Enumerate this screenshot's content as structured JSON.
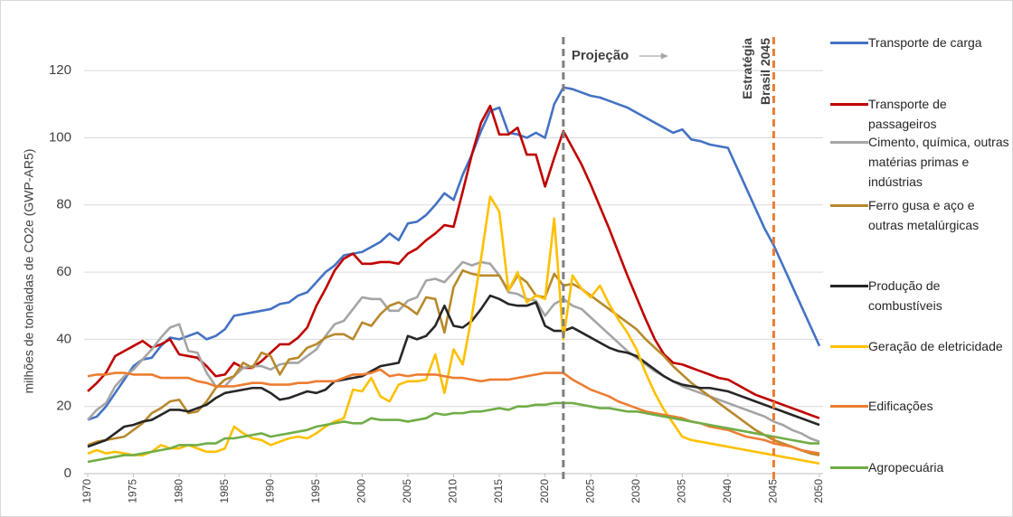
{
  "chart_data": {
    "type": "line",
    "ylabel": "milhões de toneladas de CO2e (GWP-AR5)",
    "projection_label": "Projeção",
    "target_label": [
      "Estratégia",
      "Brasil 2045"
    ],
    "reference_lines": [
      {
        "x": 2022,
        "color": "#7f7f7f"
      },
      {
        "x": 2045,
        "color": "#ed7d31"
      }
    ],
    "xlim": [
      1970,
      2050
    ],
    "xticks": [
      1970,
      1975,
      1980,
      1985,
      1990,
      1995,
      2000,
      2005,
      2010,
      2015,
      2020,
      2025,
      2030,
      2035,
      2040,
      2045,
      2050
    ],
    "ylim": [
      0,
      130
    ],
    "yticks": [
      0,
      20,
      40,
      60,
      80,
      100,
      120
    ],
    "grid": true,
    "legend": "right",
    "x": [
      1970,
      1971,
      1972,
      1973,
      1974,
      1975,
      1976,
      1977,
      1978,
      1979,
      1980,
      1981,
      1982,
      1983,
      1984,
      1985,
      1986,
      1987,
      1988,
      1989,
      1990,
      1991,
      1992,
      1993,
      1994,
      1995,
      1996,
      1997,
      1998,
      1999,
      2000,
      2001,
      2002,
      2003,
      2004,
      2005,
      2006,
      2007,
      2008,
      2009,
      2010,
      2011,
      2012,
      2013,
      2014,
      2015,
      2016,
      2017,
      2018,
      2019,
      2020,
      2021,
      2022,
      2023,
      2024,
      2025,
      2026,
      2027,
      2028,
      2029,
      2030,
      2031,
      2032,
      2033,
      2034,
      2035,
      2036,
      2037,
      2038,
      2039,
      2040,
      2041,
      2042,
      2043,
      2044,
      2045,
      2046,
      2047,
      2048,
      2049,
      2050
    ],
    "series": [
      {
        "name": "Transporte de carga",
        "color": "#4472c4",
        "values": [
          16,
          17,
          20,
          24,
          28,
          32,
          34,
          34.5,
          38,
          40.5,
          40,
          41,
          42,
          40,
          41,
          43,
          47,
          47.5,
          48,
          48.5,
          49,
          50.5,
          51,
          53,
          54,
          57,
          60,
          62,
          65,
          65.5,
          66,
          67.5,
          69,
          71.5,
          69.5,
          74.5,
          75,
          77,
          80,
          83.5,
          81.5,
          89,
          95,
          102,
          108,
          109,
          101.5,
          101,
          100,
          101.5,
          100,
          110,
          115,
          114.5,
          113.5,
          112.5,
          112,
          111,
          110,
          109,
          107.5,
          106,
          104.5,
          103,
          101.5,
          102.5,
          99.5,
          99,
          98,
          97.5,
          97,
          91,
          85,
          79,
          73,
          68,
          62,
          56,
          50,
          44,
          38
        ]
      },
      {
        "name": "Transporte de passageiros",
        "color": "#c00000",
        "values": [
          24.5,
          27,
          30,
          35,
          36.5,
          38,
          39.5,
          37.5,
          38.5,
          40,
          35.5,
          35,
          34.5,
          32,
          29,
          29.5,
          33,
          31.5,
          31.5,
          33.5,
          36,
          38.5,
          38.5,
          40.5,
          43.5,
          50,
          55,
          60.5,
          64,
          65.5,
          62.5,
          62.5,
          63,
          63,
          62.5,
          65.5,
          67,
          69.5,
          71.5,
          74,
          73.5,
          84,
          95,
          104.5,
          109.5,
          101,
          101,
          103,
          95,
          95,
          85.5,
          94,
          102,
          97,
          92,
          86,
          79.5,
          73,
          66,
          59,
          52.5,
          46,
          40,
          35.5,
          33,
          32.5,
          31.5,
          30.5,
          29.5,
          28.5,
          28,
          26.5,
          25,
          23.5,
          22.5,
          21.5,
          20.5,
          19.5,
          18.5,
          17.5,
          16.5
        ]
      },
      {
        "name": "Cimento, química, outras matérias primas e indústrias",
        "color": "#a5a5a5",
        "values": [
          16,
          19,
          21,
          26,
          29,
          31,
          34,
          37,
          40.5,
          43.5,
          44.5,
          36.5,
          36,
          30,
          26,
          26,
          29,
          31.5,
          32,
          32,
          31,
          32.5,
          33,
          33,
          35,
          37,
          41,
          44.5,
          45.5,
          49,
          52.5,
          52,
          52,
          48.5,
          48.5,
          51.5,
          52.5,
          57.5,
          58,
          57,
          60,
          63,
          62,
          63,
          62.5,
          59,
          54,
          53.5,
          52,
          51.5,
          47,
          50.5,
          52,
          50,
          49,
          46.5,
          44,
          41.5,
          39,
          36.5,
          34.5,
          32.5,
          30.5,
          29,
          27.5,
          26,
          25,
          24,
          23,
          22,
          21,
          20,
          19,
          18,
          17,
          15.5,
          14.5,
          13,
          12,
          10.5,
          9.5
        ]
      },
      {
        "name": "Ferro gusa e aço e outras metalúrgicas",
        "color": "#b8892b",
        "values": [
          8.5,
          9.5,
          10,
          10.5,
          11,
          13,
          15,
          18,
          19.5,
          21.5,
          22,
          18,
          18.5,
          21.5,
          25.5,
          28,
          29,
          33,
          31.5,
          36,
          35,
          29.5,
          34,
          34.5,
          37.5,
          38.5,
          40.5,
          41.5,
          41.5,
          40,
          45,
          44,
          47.5,
          50,
          51,
          49.5,
          47.5,
          52.5,
          52,
          42,
          55.5,
          60.5,
          59.5,
          59,
          59,
          59,
          54.5,
          59,
          57,
          53,
          52.5,
          59.5,
          56,
          56.5,
          55,
          53,
          51,
          49,
          47,
          45,
          43,
          40,
          37.5,
          35,
          32,
          29.5,
          27,
          25,
          23,
          21,
          19,
          17,
          15,
          13,
          11.5,
          10,
          9,
          8,
          7,
          6,
          5.5
        ]
      },
      {
        "name": "Produção de combustíveis",
        "color": "#262626",
        "values": [
          8,
          9,
          10,
          12,
          14,
          14.5,
          15.5,
          16,
          17.5,
          19,
          19,
          18.5,
          19.5,
          20.5,
          22.5,
          24,
          24.5,
          25,
          25.5,
          25.5,
          24,
          22,
          22.5,
          23.5,
          24.5,
          24,
          25,
          27.5,
          28,
          28.5,
          29,
          30.5,
          32,
          32.5,
          33,
          41,
          40,
          41,
          44,
          50,
          44,
          43.5,
          45.5,
          49,
          53,
          52,
          50.5,
          50,
          50,
          51,
          44,
          42.5,
          42.5,
          43.5,
          42,
          40.5,
          39,
          37.5,
          36.5,
          36,
          35,
          33,
          31,
          29,
          27.5,
          26.5,
          26,
          25.5,
          25.5,
          25,
          24.5,
          23.5,
          22.5,
          21.5,
          20.5,
          19.5,
          18.5,
          17.5,
          16.5,
          15.5,
          14.5
        ]
      },
      {
        "name": "Geração de eletricidade",
        "color": "#ffc000",
        "values": [
          6,
          7,
          6,
          6.5,
          6,
          5.5,
          5.5,
          6.5,
          8.5,
          7.5,
          7.5,
          8.5,
          7.5,
          6.5,
          6.5,
          7.5,
          14,
          12,
          10.5,
          10,
          8.5,
          9.5,
          10.5,
          11,
          10.5,
          12,
          14,
          15.5,
          16.5,
          25,
          24.5,
          28.5,
          23,
          21.5,
          26.5,
          27.5,
          27.5,
          28,
          35.5,
          24,
          37,
          32.5,
          47,
          64,
          82.5,
          78,
          54.5,
          60,
          51,
          53,
          52,
          76,
          40,
          59,
          55,
          52.5,
          56,
          50.5,
          46,
          42,
          37,
          30,
          24,
          19,
          15,
          11,
          10,
          9.5,
          9,
          8.5,
          8,
          7.5,
          7,
          6.5,
          6,
          5.5,
          5,
          4.5,
          4,
          3.5,
          3
        ]
      },
      {
        "name": "Edificações",
        "color": "#ed7d31",
        "values": [
          29,
          29.5,
          29.5,
          30,
          30,
          29.5,
          29.5,
          29.5,
          28.5,
          28.5,
          28.5,
          28.5,
          27.5,
          27,
          26,
          26,
          26,
          26.5,
          27,
          27,
          26.5,
          26.5,
          26.5,
          27,
          27,
          27.5,
          27.5,
          27.5,
          28.5,
          29.5,
          29.5,
          30,
          31,
          29,
          29.5,
          29,
          29.5,
          29.5,
          29.5,
          29,
          28.5,
          28.5,
          28,
          27.5,
          28,
          28,
          28,
          28.5,
          29,
          29.5,
          30,
          30,
          30,
          28,
          26.5,
          25,
          24,
          23,
          21.5,
          20.5,
          19.5,
          18.5,
          18,
          17.5,
          17,
          16.5,
          15.5,
          15,
          14,
          13.5,
          13,
          12,
          11,
          10.5,
          10,
          9,
          8.5,
          8,
          7,
          6.5,
          6
        ]
      },
      {
        "name": "Agropecuária",
        "color": "#70ad47",
        "values": [
          3.5,
          4,
          4.5,
          5,
          5.5,
          5.5,
          6,
          6.5,
          7,
          7.5,
          8.5,
          8.5,
          8.5,
          9,
          9,
          10.5,
          10.5,
          11,
          11.5,
          12,
          11,
          11.5,
          12,
          12.5,
          13,
          14,
          14.5,
          15,
          15.5,
          15,
          15,
          16.5,
          16,
          16,
          16,
          15.5,
          16,
          16.5,
          18,
          17.5,
          18,
          18,
          18.5,
          18.5,
          19,
          19.5,
          19,
          20,
          20,
          20.5,
          20.5,
          21,
          21,
          21,
          20.5,
          20,
          19.5,
          19.5,
          19,
          18.5,
          18.5,
          18,
          17.5,
          17,
          16.5,
          16,
          15.5,
          15,
          14.5,
          14,
          13.5,
          13,
          12.5,
          12,
          11.5,
          11,
          10.5,
          10,
          9.5,
          9,
          9
        ]
      }
    ]
  }
}
